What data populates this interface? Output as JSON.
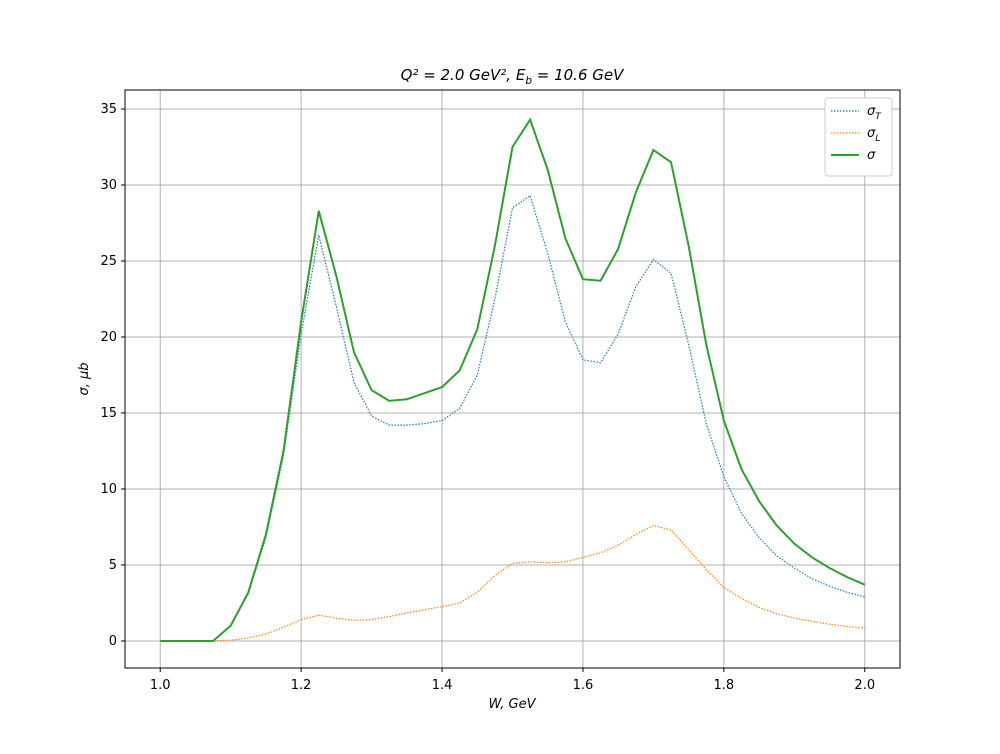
{
  "chart_data": {
    "type": "line",
    "title": "Q² = 2.0 GeV²,  E_b = 10.6 GeV",
    "xlabel": "W, GeV",
    "ylabel": "σ, μb",
    "x": [
      1.0,
      1.025,
      1.05,
      1.075,
      1.1,
      1.125,
      1.15,
      1.175,
      1.2,
      1.225,
      1.25,
      1.275,
      1.3,
      1.325,
      1.35,
      1.375,
      1.4,
      1.425,
      1.45,
      1.475,
      1.5,
      1.525,
      1.55,
      1.575,
      1.6,
      1.625,
      1.65,
      1.675,
      1.7,
      1.725,
      1.75,
      1.775,
      1.8,
      1.825,
      1.85,
      1.875,
      1.9,
      1.925,
      1.95,
      1.975,
      2.0
    ],
    "series": [
      {
        "name": "σ_T",
        "color": "#1f77b4",
        "linestyle": "dotted",
        "values": [
          0,
          0,
          0,
          0,
          1.0,
          3.1,
          6.8,
          12.2,
          20.2,
          26.7,
          22,
          17,
          14.8,
          14.2,
          14.2,
          14.3,
          14.5,
          15.3,
          17.5,
          22.5,
          28.5,
          29.3,
          25.5,
          21,
          18.5,
          18.3,
          20.2,
          23.3,
          25.1,
          24.2,
          19.5,
          14.3,
          10.8,
          8.4,
          6.8,
          5.6,
          4.8,
          4.1,
          3.6,
          3.2,
          2.9
        ]
      },
      {
        "name": "σ_L",
        "color": "#ff7f0e",
        "linestyle": "dotted",
        "values": [
          0,
          0,
          0,
          0,
          0.05,
          0.2,
          0.45,
          0.9,
          1.4,
          1.7,
          1.5,
          1.35,
          1.4,
          1.6,
          1.85,
          2.05,
          2.25,
          2.5,
          3.2,
          4.3,
          5.1,
          5.2,
          5.15,
          5.2,
          5.5,
          5.8,
          6.3,
          7.0,
          7.6,
          7.3,
          6.0,
          4.7,
          3.5,
          2.8,
          2.2,
          1.8,
          1.5,
          1.3,
          1.1,
          0.95,
          0.85
        ]
      },
      {
        "name": "σ",
        "color": "#2ca02c",
        "linestyle": "solid",
        "values": [
          0,
          0,
          0,
          0,
          1.0,
          3.2,
          7,
          12.5,
          21,
          28.3,
          24,
          19,
          16.5,
          15.8,
          15.9,
          16.3,
          16.7,
          17.8,
          20.5,
          26,
          32.5,
          34.3,
          31,
          26.5,
          23.8,
          23.7,
          25.8,
          29.5,
          32.3,
          31.5,
          26,
          19.5,
          14.5,
          11.3,
          9.2,
          7.6,
          6.4,
          5.5,
          4.8,
          4.2,
          3.7
        ]
      }
    ],
    "xlim": [
      0.95,
      2.05
    ],
    "ylim": [
      -1.78,
      36.25
    ],
    "xticks": [
      {
        "value": 1.0,
        "label": "1.0"
      },
      {
        "value": 1.2,
        "label": "1.2"
      },
      {
        "value": 1.4,
        "label": "1.4"
      },
      {
        "value": 1.6,
        "label": "1.6"
      },
      {
        "value": 1.8,
        "label": "1.8"
      },
      {
        "value": 2.0,
        "label": "2.0"
      }
    ],
    "yticks": [
      0,
      5,
      10,
      15,
      20,
      25,
      30,
      35
    ],
    "grid": true,
    "legend": "upper-right"
  }
}
